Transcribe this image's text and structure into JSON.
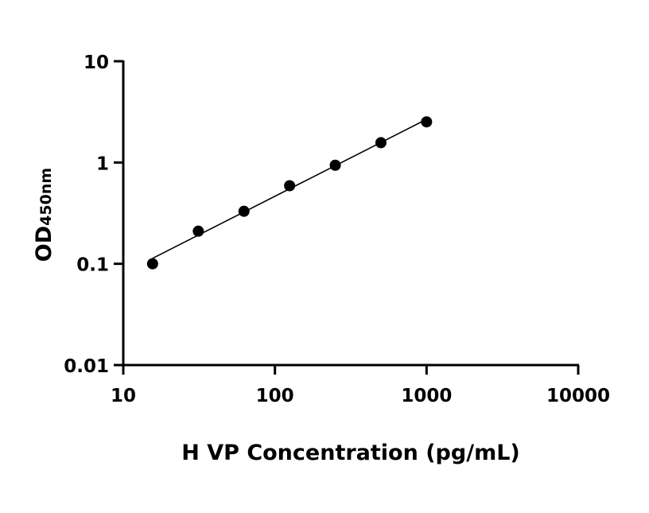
{
  "chart_data": {
    "type": "scatter",
    "xlabel": "H VP Concentration (pg/mL)",
    "ylabel": "OD",
    "ylabel_subscript": "450nm",
    "x_scale": "log",
    "y_scale": "log",
    "xlim": [
      10,
      10000
    ],
    "ylim": [
      0.01,
      10
    ],
    "x_ticks": [
      10,
      100,
      1000,
      10000
    ],
    "x_tick_labels": [
      "10",
      "100",
      "1000",
      "10000"
    ],
    "y_ticks": [
      0.01,
      0.1,
      1,
      10
    ],
    "y_tick_labels": [
      "0.01",
      "0.1",
      "1",
      "10"
    ],
    "grid": false,
    "series": [
      {
        "x": [
          15.6,
          31.25,
          62.5,
          125,
          250,
          500,
          1000
        ],
        "y": [
          0.1,
          0.21,
          0.33,
          0.59,
          0.94,
          1.57,
          2.52
        ],
        "fit_line": true
      }
    ]
  }
}
